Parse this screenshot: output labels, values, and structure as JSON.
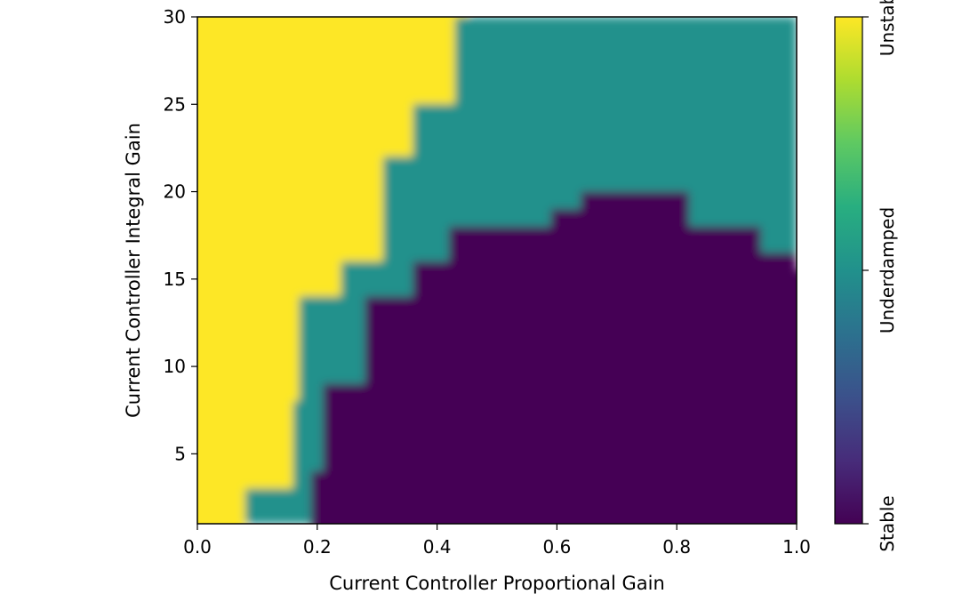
{
  "chart_data": {
    "type": "heatmap",
    "title": "",
    "xlabel": "Current Controller Proportional Gain",
    "ylabel": "Current Controller Integral Gain",
    "xlim": [
      0.0,
      1.0
    ],
    "ylim": [
      1,
      30
    ],
    "xticks": [
      {
        "value": 0.0,
        "label": "0.0"
      },
      {
        "value": 0.2,
        "label": "0.2"
      },
      {
        "value": 0.4,
        "label": "0.4"
      },
      {
        "value": 0.6,
        "label": "0.6"
      },
      {
        "value": 0.8,
        "label": "0.8"
      },
      {
        "value": 1.0,
        "label": "1.0"
      }
    ],
    "yticks": [
      {
        "value": 5,
        "label": "5"
      },
      {
        "value": 10,
        "label": "10"
      },
      {
        "value": 15,
        "label": "15"
      },
      {
        "value": 20,
        "label": "20"
      },
      {
        "value": 25,
        "label": "25"
      },
      {
        "value": 30,
        "label": "30"
      }
    ],
    "colormap": "viridis",
    "interpolation": "smooth",
    "class_values": {
      "stable": 0,
      "underdamped": 1,
      "unstable": 2
    },
    "class_colors": {
      "stable": "#440154",
      "underdamped": "#21918c",
      "unstable": "#fde725"
    },
    "colorbar": {
      "range": [
        0,
        2
      ],
      "ticks": [
        {
          "value": 0,
          "label": "Stable"
        },
        {
          "value": 1,
          "label": "Underdamped"
        },
        {
          "value": 2,
          "label": "Unstable"
        }
      ]
    },
    "regions": {
      "unstable_upper_kp": [
        {
          "ki": 1,
          "kp": 0.08
        },
        {
          "ki": 3,
          "kp": 0.16
        },
        {
          "ki": 8,
          "kp": 0.17
        },
        {
          "ki": 14,
          "kp": 0.24
        },
        {
          "ki": 16,
          "kp": 0.31
        },
        {
          "ki": 21,
          "kp": 0.31
        },
        {
          "ki": 22,
          "kp": 0.36
        },
        {
          "ki": 25,
          "kp": 0.43
        },
        {
          "ki": 30,
          "kp": 0.45
        }
      ],
      "stable_lower_kp": [
        {
          "ki": 1,
          "kp": 0.19
        },
        {
          "ki": 4,
          "kp": 0.21
        },
        {
          "ki": 9,
          "kp": 0.28
        },
        {
          "ki": 14,
          "kp": 0.36
        },
        {
          "ki": 16,
          "kp": 0.42
        },
        {
          "ki": 18,
          "kp": 0.49
        }
      ],
      "stable_upper_ki": [
        {
          "kp": 0.49,
          "ki": 18
        },
        {
          "kp": 0.59,
          "ki": 19
        },
        {
          "kp": 0.64,
          "ki": 20
        },
        {
          "kp": 0.79,
          "ki": 20
        },
        {
          "kp": 0.82,
          "ki": 18
        },
        {
          "kp": 0.94,
          "ki": 16.5
        },
        {
          "kp": 1.0,
          "ki": 15.5
        }
      ]
    }
  }
}
